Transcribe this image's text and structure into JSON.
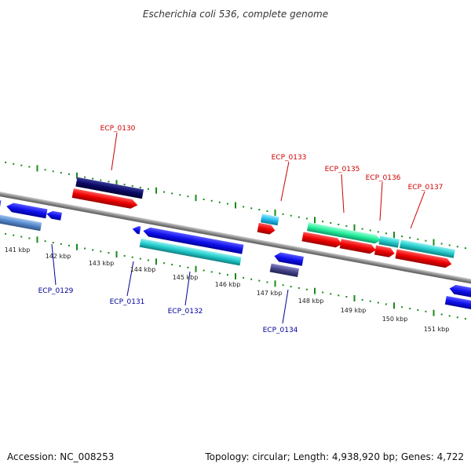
{
  "title": "Escherichia coli 536, complete genome",
  "footer": {
    "accession": "Accession: NC_008253",
    "summary": "Topology: circular; Length: 4,938,920 bp; Genes: 4,722"
  },
  "colors": {
    "plus_label": "#cc0000",
    "minus_label": "#000099",
    "tick": "#1a8a1a",
    "backbone": "#888888"
  },
  "ticks": [
    "141 kbp",
    "142 kbp",
    "143 kbp",
    "144 kbp",
    "145 kbp",
    "146 kbp",
    "147 kbp",
    "148 kbp",
    "149 kbp",
    "150 kbp",
    "151 kbp"
  ],
  "genes_labeled": [
    {
      "name": "ECP_0129",
      "strand": "minus"
    },
    {
      "name": "ECP_0130",
      "strand": "plus"
    },
    {
      "name": "ECP_0131",
      "strand": "minus"
    },
    {
      "name": "ECP_0132",
      "strand": "minus"
    },
    {
      "name": "ECP_0133",
      "strand": "plus"
    },
    {
      "name": "ECP_0134",
      "strand": "minus"
    },
    {
      "name": "ECP_0135",
      "strand": "plus"
    },
    {
      "name": "ECP_0136",
      "strand": "plus"
    },
    {
      "name": "ECP_0137",
      "strand": "plus"
    }
  ]
}
